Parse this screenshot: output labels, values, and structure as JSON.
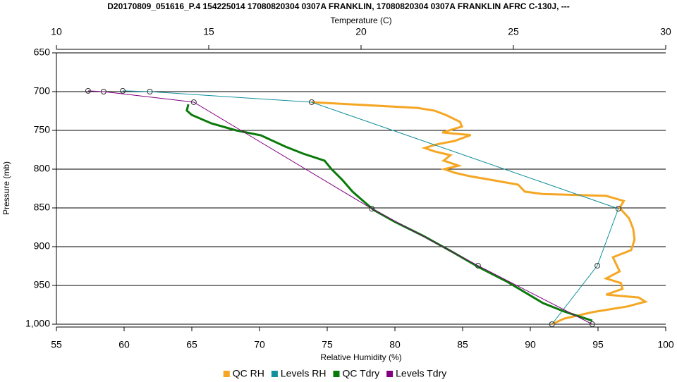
{
  "chart_data": {
    "type": "line",
    "title": "D20170809_051616_P.4 154225014 17080820304 0307A FRANKLIN, 17080820304 0307A FRANKLIN AFRC C-130J, ---",
    "xlabel": "Relative Humidity (%)",
    "x2label": "Temperature (C)",
    "ylabel": "Pressure (mb)",
    "xlim": [
      55,
      100
    ],
    "xticks": [
      55,
      60,
      65,
      70,
      75,
      80,
      85,
      90,
      95,
      100
    ],
    "x2lim": [
      10,
      30
    ],
    "x2ticks": [
      10,
      15,
      20,
      25,
      30
    ],
    "ylim": [
      650,
      1000
    ],
    "y_reversed": true,
    "yticks": [
      650,
      700,
      750,
      800,
      850,
      900,
      950,
      {
        "value": 1000,
        "label": "1,000"
      }
    ],
    "grid": true,
    "legend": "bottom",
    "series": [
      {
        "name": "QC RH",
        "color": "#f5a623",
        "axis": "x",
        "x": [
          73.85,
          81.67,
          82.9,
          83.75,
          84.8,
          84.95,
          83.5,
          85.6,
          84.4,
          83.1,
          82.2,
          82.9,
          84.1,
          83.6,
          84.7,
          83.65,
          84.4,
          85.5,
          87.3,
          89.1,
          89.6,
          90.9,
          95.6,
          96.9,
          96.6,
          97.3,
          97.6,
          97.7,
          97.45,
          96.1,
          96.6,
          95.6,
          96.7,
          96.8,
          95.6,
          98.0,
          98.5,
          97.2,
          94.6,
          92.5,
          91.6
        ],
        "values": [
          713.6,
          721,
          724.5,
          730,
          739,
          745,
          752.7,
          756,
          763.6,
          768,
          772.7,
          777,
          782,
          789,
          795.5,
          800,
          804.5,
          809,
          814.5,
          820,
          829,
          832,
          834.5,
          841,
          850,
          863.6,
          877,
          891,
          904.5,
          913.6,
          931.8,
          941,
          947,
          954.5,
          961.8,
          965.5,
          971,
          977,
          984.5,
          992.7,
          1000
        ]
      },
      {
        "name": "Levels RH",
        "color": "#12909c",
        "axis": "x",
        "x": [
          59.9,
          61.9,
          73.85,
          96.5,
          94.95,
          91.6
        ],
        "values": [
          699,
          700,
          713.6,
          851,
          924.5,
          1000
        ]
      },
      {
        "name": "QC Tdry",
        "color": "#0a7a0a",
        "axis": "x2",
        "x": [
          14.33,
          14.28,
          14.44,
          15.09,
          15.9,
          16.71,
          17.52,
          18.1,
          18.8,
          19.03,
          19.38,
          19.72,
          20.07,
          20.42,
          21.11,
          22.04,
          22.96,
          23.89,
          24.81,
          25.97,
          26.67,
          27.59
        ],
        "values": [
          716.4,
          724.5,
          730,
          741,
          750,
          756.4,
          771,
          780,
          789,
          800,
          813.6,
          829,
          841,
          852.7,
          868,
          886,
          906,
          927,
          945.5,
          972.7,
          983.6,
          995.5
        ]
      },
      {
        "name": "Levels Tdry",
        "color": "#800080",
        "axis": "x2",
        "x": [
          11.04,
          11.55,
          14.51,
          20.35,
          23.84,
          27.59
        ],
        "values": [
          699,
          700,
          713.6,
          851,
          924.5,
          1000
        ]
      }
    ]
  }
}
